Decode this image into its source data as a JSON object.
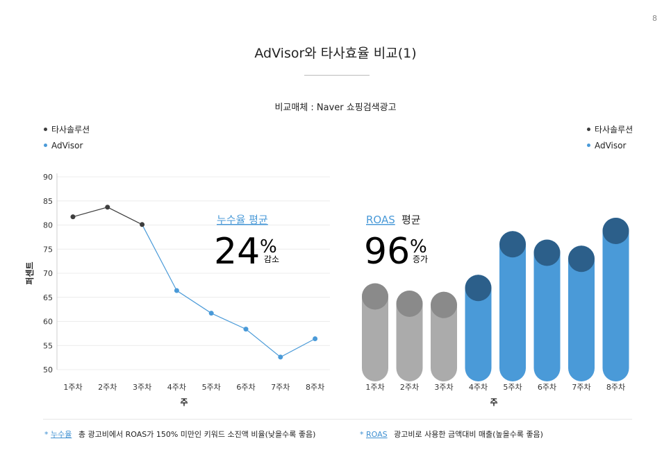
{
  "page_number": "8",
  "title": "AdVisor와 타사효율 비교(1)",
  "subtitle": "비교매체 : Naver 쇼핑검색광고",
  "colors": {
    "competitor": "#3d3d3d",
    "advisor": "#4a9ad8",
    "bar_gray": "#ababab",
    "cap_gray": "#8a8a8a",
    "bar_blue": "#4a9ad8",
    "cap_blue": "#2c5f8a",
    "highlight": "#4a9ad8"
  },
  "legend": {
    "competitor": "타사솔루션",
    "advisor": "AdVisor"
  },
  "left_callout": {
    "label": "누수율 평균",
    "value": "24",
    "unit": "%",
    "change": "감소"
  },
  "right_callout": {
    "label_key": "ROAS",
    "label_rest": "평균",
    "value": "96",
    "unit": "%",
    "change": "증가"
  },
  "footnotes": {
    "left_star": "*",
    "left_key": "누수율",
    "left_text": "총 광고비에서 ROAS가 150% 미만인 키워드 소진액 비율(낮을수록 좋음)",
    "right_star": "*",
    "right_key": "ROAS",
    "right_text": "광고비로 사용한 금액대비 매출(높을수록 좋음)"
  },
  "chart_data": [
    {
      "type": "line",
      "categories": [
        "1주차",
        "2주차",
        "3주차",
        "4주차",
        "5주차",
        "6주차",
        "7주차",
        "8주차"
      ],
      "series": [
        {
          "name": "타사솔루션",
          "values": [
            81.7,
            83.7,
            80.1,
            null,
            null,
            null,
            null,
            null
          ]
        },
        {
          "name": "AdVisor",
          "values": [
            null,
            null,
            80.1,
            66.4,
            61.7,
            58.4,
            52.6,
            56.4
          ]
        }
      ],
      "xlabel": "주",
      "ylabel": "퍼센트",
      "ylim": [
        50,
        90
      ],
      "yticks": [
        50,
        55,
        60,
        65,
        70,
        75,
        80,
        85,
        90
      ],
      "grid": true,
      "legend": "top-left"
    },
    {
      "type": "bar",
      "categories": [
        "1주차",
        "2주차",
        "3주차",
        "4주차",
        "5주차",
        "6주차",
        "7주차",
        "8주차"
      ],
      "groups": [
        "타사솔루션",
        "타사솔루션",
        "타사솔루션",
        "AdVisor",
        "AdVisor",
        "AdVisor",
        "AdVisor",
        "AdVisor"
      ],
      "values": [
        65,
        62,
        61.5,
        68.5,
        86.5,
        83,
        80.5,
        92
      ],
      "xlabel": "주",
      "ylim": [
        30,
        100
      ],
      "legend": "top-right"
    }
  ]
}
